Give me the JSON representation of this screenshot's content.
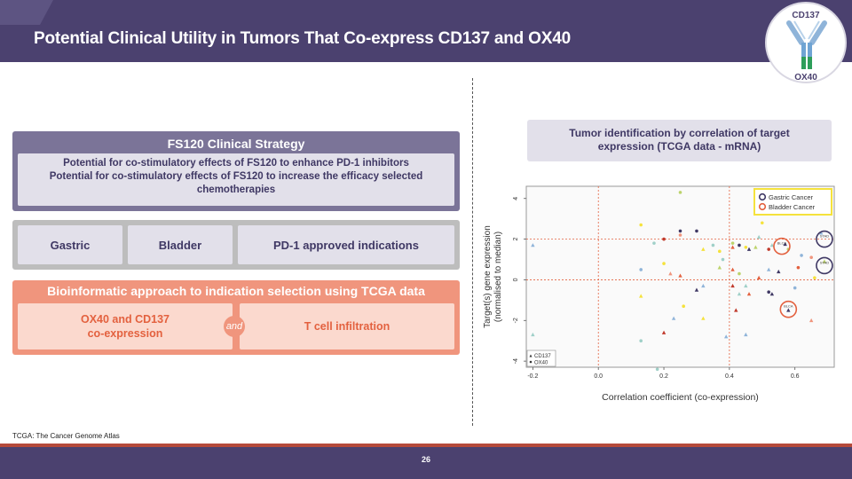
{
  "header": {
    "title": "Potential Clinical Utility in Tumors That Co-express CD137 and OX40"
  },
  "logo": {
    "top_label": "CD137",
    "bottom_label": "OX40"
  },
  "strategy": {
    "title": "FS120 Clinical Strategy",
    "line1": "Potential for co-stimulatory effects of FS120 to enhance PD-1 inhibitors",
    "line2": "Potential for co-stimulatory effects of FS120 to increase the efficacy selected chemotherapies"
  },
  "indications": [
    "Gastric",
    "Bladder",
    "PD-1 approved indications"
  ],
  "bioinformatics": {
    "title": "Bioinformatic approach to indication selection using TCGA data",
    "left_line1": "OX40 and CD137",
    "left_line2": "co-expression",
    "connector": "and",
    "right": "T cell infiltration"
  },
  "footnote": "TCGA: The Cancer Genome Atlas",
  "tumor_box": {
    "line1": "Tumor identification by correlation of target",
    "line2": "expression (TCGA data - mRNA)"
  },
  "page_number": "26",
  "colors": {
    "header": "#4b416f",
    "accent_orange": "#f0957d",
    "gastric_highlight": "#3f3864",
    "bladder_highlight": "#e3613f",
    "legend_border": "#f5e23c"
  },
  "chart_data": {
    "type": "scatter",
    "xlabel": "Correlation coefficient (co-expression)",
    "ylabel_line1": "Target(s) gene expression",
    "ylabel_line2": "(normalised to median)",
    "xlim": [
      -0.22,
      0.72
    ],
    "ylim": [
      -4.3,
      4.6
    ],
    "x_ticks": [
      "-0.2",
      "0.0",
      "0.2",
      "0.4",
      "0.6"
    ],
    "x_tick_values": [
      -0.2,
      0.0,
      0.2,
      0.4,
      0.6
    ],
    "y_ticks": [
      "-4",
      "-2",
      "0",
      "2",
      "4"
    ],
    "y_tick_values": [
      -4,
      -2,
      0,
      2,
      4
    ],
    "reference_lines": {
      "x": [
        0.0,
        0.4
      ],
      "y": [
        0,
        2
      ]
    },
    "legend": [
      "Gastric Cancer",
      "Bladder Cancer"
    ],
    "marker_legend": [
      "CD137",
      "OX40"
    ],
    "highlight_labels": [
      "STAD",
      "STAD",
      "BLCA",
      "BLCA"
    ],
    "points": [
      {
        "x": -0.2,
        "y": 1.7,
        "m": "triangle",
        "c": "#8fb4d9"
      },
      {
        "x": -0.2,
        "y": -2.7,
        "m": "triangle",
        "c": "#9fd0c8"
      },
      {
        "x": 0.13,
        "y": 2.7,
        "m": "circle",
        "c": "#f5e23c"
      },
      {
        "x": 0.13,
        "y": 0.5,
        "m": "circle",
        "c": "#8fb4d9"
      },
      {
        "x": 0.13,
        "y": -0.8,
        "m": "triangle",
        "c": "#f5e23c"
      },
      {
        "x": 0.13,
        "y": -3.0,
        "m": "circle",
        "c": "#9fd0c8"
      },
      {
        "x": 0.17,
        "y": 1.8,
        "m": "circle",
        "c": "#9fd0c8"
      },
      {
        "x": 0.18,
        "y": -4.4,
        "m": "circle",
        "c": "#9fd0c8"
      },
      {
        "x": 0.2,
        "y": 2.0,
        "m": "circle",
        "c": "#c0392b"
      },
      {
        "x": 0.2,
        "y": 0.8,
        "m": "circle",
        "c": "#f5e23c"
      },
      {
        "x": 0.2,
        "y": -2.6,
        "m": "triangle",
        "c": "#c0392b"
      },
      {
        "x": 0.22,
        "y": 0.3,
        "m": "triangle",
        "c": "#f0957d"
      },
      {
        "x": 0.23,
        "y": -1.9,
        "m": "triangle",
        "c": "#8fb4d9"
      },
      {
        "x": 0.25,
        "y": 4.3,
        "m": "circle",
        "c": "#bcd36b"
      },
      {
        "x": 0.25,
        "y": 2.4,
        "m": "circle",
        "c": "#3f3864"
      },
      {
        "x": 0.25,
        "y": 2.2,
        "m": "circle",
        "c": "#f0957d"
      },
      {
        "x": 0.25,
        "y": 0.2,
        "m": "triangle",
        "c": "#e3613f"
      },
      {
        "x": 0.26,
        "y": -1.3,
        "m": "circle",
        "c": "#f5e23c"
      },
      {
        "x": 0.3,
        "y": 2.4,
        "m": "circle",
        "c": "#3f3864"
      },
      {
        "x": 0.3,
        "y": -0.5,
        "m": "triangle",
        "c": "#3f3864"
      },
      {
        "x": 0.32,
        "y": 1.5,
        "m": "triangle",
        "c": "#f5e23c"
      },
      {
        "x": 0.32,
        "y": -0.3,
        "m": "triangle",
        "c": "#8fb4d9"
      },
      {
        "x": 0.32,
        "y": -1.9,
        "m": "triangle",
        "c": "#f5e23c"
      },
      {
        "x": 0.35,
        "y": 1.7,
        "m": "circle",
        "c": "#9fd0c8"
      },
      {
        "x": 0.37,
        "y": 1.4,
        "m": "circle",
        "c": "#f5e23c"
      },
      {
        "x": 0.37,
        "y": 0.6,
        "m": "triangle",
        "c": "#bcd36b"
      },
      {
        "x": 0.38,
        "y": 1.0,
        "m": "circle",
        "c": "#9fd0c8"
      },
      {
        "x": 0.39,
        "y": -2.8,
        "m": "triangle",
        "c": "#8fb4d9"
      },
      {
        "x": 0.41,
        "y": 1.8,
        "m": "circle",
        "c": "#bcd36b"
      },
      {
        "x": 0.41,
        "y": 1.6,
        "m": "triangle",
        "c": "#e3613f"
      },
      {
        "x": 0.41,
        "y": 0.5,
        "m": "triangle",
        "c": "#e3613f"
      },
      {
        "x": 0.41,
        "y": -0.3,
        "m": "triangle",
        "c": "#c0392b"
      },
      {
        "x": 0.42,
        "y": -1.5,
        "m": "triangle",
        "c": "#c0392b"
      },
      {
        "x": 0.43,
        "y": 1.7,
        "m": "circle",
        "c": "#3f3864"
      },
      {
        "x": 0.43,
        "y": 0.3,
        "m": "circle",
        "c": "#bcd36b"
      },
      {
        "x": 0.43,
        "y": -0.7,
        "m": "triangle",
        "c": "#9fd0c8"
      },
      {
        "x": 0.45,
        "y": 1.6,
        "m": "circle",
        "c": "#f5e23c"
      },
      {
        "x": 0.45,
        "y": -0.3,
        "m": "triangle",
        "c": "#9fd0c8"
      },
      {
        "x": 0.45,
        "y": -2.7,
        "m": "triangle",
        "c": "#8fb4d9"
      },
      {
        "x": 0.46,
        "y": 1.5,
        "m": "triangle",
        "c": "#3f3864"
      },
      {
        "x": 0.46,
        "y": -0.7,
        "m": "triangle",
        "c": "#e3613f"
      },
      {
        "x": 0.48,
        "y": 1.6,
        "m": "triangle",
        "c": "#bcd36b"
      },
      {
        "x": 0.49,
        "y": 2.1,
        "m": "triangle",
        "c": "#9fd0c8"
      },
      {
        "x": 0.49,
        "y": 0.1,
        "m": "triangle",
        "c": "#e3613f"
      },
      {
        "x": 0.5,
        "y": 2.8,
        "m": "circle",
        "c": "#f5e23c"
      },
      {
        "x": 0.52,
        "y": 1.5,
        "m": "circle",
        "c": "#c0392b"
      },
      {
        "x": 0.52,
        "y": 0.5,
        "m": "triangle",
        "c": "#8fb4d9"
      },
      {
        "x": 0.52,
        "y": -0.6,
        "m": "circle",
        "c": "#3f3864"
      },
      {
        "x": 0.53,
        "y": 1.7,
        "m": "triangle",
        "c": "#9fd0c8"
      },
      {
        "x": 0.53,
        "y": -0.7,
        "m": "triangle",
        "c": "#3f3864"
      },
      {
        "x": 0.55,
        "y": 0.4,
        "m": "triangle",
        "c": "#3f3864"
      },
      {
        "x": 0.57,
        "y": 1.75,
        "m": "triangle",
        "c": "#3f3864"
      },
      {
        "x": 0.58,
        "y": 1.5,
        "m": "circle",
        "c": "#bcd36b"
      },
      {
        "x": 0.58,
        "y": -1.5,
        "m": "triangle",
        "c": "#3f3864"
      },
      {
        "x": 0.6,
        "y": -0.4,
        "m": "circle",
        "c": "#8fb4d9"
      },
      {
        "x": 0.61,
        "y": 0.6,
        "m": "circle",
        "c": "#e3613f"
      },
      {
        "x": 0.62,
        "y": 1.2,
        "m": "circle",
        "c": "#8fb4d9"
      },
      {
        "x": 0.65,
        "y": 1.1,
        "m": "circle",
        "c": "#f0957d"
      },
      {
        "x": 0.65,
        "y": -2.0,
        "m": "triangle",
        "c": "#f0957d"
      },
      {
        "x": 0.66,
        "y": 0.1,
        "m": "circle",
        "c": "#f5e23c"
      },
      {
        "x": 0.68,
        "y": 2.3,
        "m": "triangle",
        "c": "#8fb4d9"
      },
      {
        "x": 0.69,
        "y": 0.9,
        "m": "triangle",
        "c": "#bcd36b"
      }
    ],
    "highlights": [
      {
        "x": 0.69,
        "y": 2.0,
        "label": "STAD",
        "c": "#3f3864"
      },
      {
        "x": 0.69,
        "y": 0.7,
        "label": "STAD",
        "c": "#3f3864"
      },
      {
        "x": 0.56,
        "y": 1.65,
        "label": "BLCA",
        "c": "#e3613f"
      },
      {
        "x": 0.58,
        "y": -1.45,
        "label": "BLCA",
        "c": "#e3613f"
      }
    ]
  }
}
